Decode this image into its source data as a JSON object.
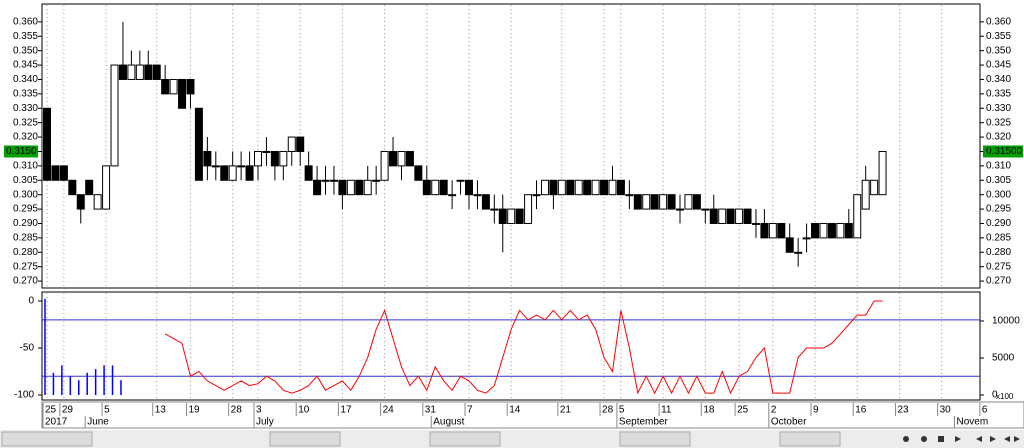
{
  "chart_data": [
    {
      "type": "candlestick",
      "categories": [
        "25",
        null,
        "29",
        null,
        null,
        null,
        null,
        "5",
        null,
        null,
        null,
        null,
        null,
        "13",
        null,
        null,
        null,
        "19",
        null,
        null,
        null,
        null,
        "28",
        null,
        null,
        "3",
        null,
        null,
        null,
        null,
        "10",
        null,
        null,
        null,
        null,
        "17",
        null,
        null,
        null,
        null,
        "24",
        null,
        null,
        null,
        null,
        "31",
        null,
        null,
        null,
        null,
        "7",
        null,
        null,
        null,
        null,
        "14",
        null,
        null,
        null,
        null,
        null,
        "21",
        null,
        null,
        null,
        null,
        "28",
        null,
        "5",
        null,
        null,
        null,
        null,
        "11",
        null,
        null,
        null,
        null,
        "18",
        null,
        null,
        null,
        "25",
        null,
        null,
        null,
        "2",
        null,
        null,
        null,
        null,
        "9",
        null,
        null,
        null,
        null,
        "16",
        null,
        null,
        null,
        null,
        "23",
        null,
        null,
        null,
        null,
        "30",
        null,
        null,
        null,
        null,
        "6"
      ],
      "months": [
        "2017",
        null,
        null,
        null,
        null,
        "June",
        null,
        null,
        null,
        null,
        null,
        null,
        null,
        null,
        null,
        null,
        null,
        null,
        null,
        null,
        null,
        null,
        null,
        null,
        null,
        "July",
        null,
        null,
        null,
        null,
        null,
        null,
        null,
        null,
        null,
        null,
        null,
        null,
        null,
        null,
        null,
        null,
        null,
        null,
        null,
        null,
        "August",
        null,
        null,
        null,
        null,
        null,
        null,
        null,
        null,
        null,
        null,
        null,
        null,
        null,
        null,
        null,
        null,
        null,
        null,
        null,
        null,
        null,
        "September",
        null,
        null,
        null,
        null,
        null,
        null,
        null,
        null,
        null,
        null,
        null,
        null,
        null,
        null,
        null,
        null,
        null,
        "October",
        null,
        null,
        null,
        null,
        null,
        null,
        null,
        null,
        null,
        null,
        null,
        null,
        null,
        null,
        null,
        null,
        null,
        null,
        null,
        null,
        null,
        "Novem",
        null,
        null,
        null
      ],
      "candles": [
        [
          0.33,
          0.33,
          0.305,
          0.305
        ],
        [
          0.31,
          0.31,
          0.305,
          0.305
        ],
        [
          0.31,
          0.31,
          0.305,
          0.305
        ],
        [
          0.305,
          0.305,
          0.3,
          0.3
        ],
        [
          0.3,
          0.3,
          0.29,
          0.295
        ],
        [
          0.305,
          0.305,
          0.3,
          0.3
        ],
        [
          0.295,
          0.3,
          0.295,
          0.3
        ],
        [
          0.295,
          0.31,
          0.295,
          0.31
        ],
        [
          0.31,
          0.345,
          0.31,
          0.345
        ],
        [
          0.345,
          0.36,
          0.34,
          0.34
        ],
        [
          0.34,
          0.35,
          0.34,
          0.345
        ],
        [
          0.34,
          0.35,
          0.34,
          0.345
        ],
        [
          0.345,
          0.35,
          0.34,
          0.34
        ],
        [
          0.345,
          0.345,
          0.34,
          0.34
        ],
        [
          0.34,
          0.345,
          0.335,
          0.335
        ],
        [
          0.335,
          0.34,
          0.335,
          0.34
        ],
        [
          0.34,
          0.34,
          0.33,
          0.33
        ],
        [
          0.34,
          0.34,
          0.33,
          0.335
        ],
        [
          0.33,
          0.33,
          0.305,
          0.305
        ],
        [
          0.315,
          0.32,
          0.305,
          0.31
        ],
        [
          0.31,
          0.315,
          0.305,
          0.31
        ],
        [
          0.31,
          0.31,
          0.305,
          0.305
        ],
        [
          0.305,
          0.315,
          0.305,
          0.31
        ],
        [
          0.31,
          0.315,
          0.305,
          0.31
        ],
        [
          0.31,
          0.315,
          0.305,
          0.305
        ],
        [
          0.31,
          0.315,
          0.305,
          0.315
        ],
        [
          0.315,
          0.32,
          0.31,
          0.315
        ],
        [
          0.315,
          0.315,
          0.305,
          0.31
        ],
        [
          0.31,
          0.315,
          0.305,
          0.315
        ],
        [
          0.315,
          0.32,
          0.31,
          0.32
        ],
        [
          0.32,
          0.32,
          0.31,
          0.315
        ],
        [
          0.31,
          0.315,
          0.305,
          0.305
        ],
        [
          0.305,
          0.31,
          0.3,
          0.3
        ],
        [
          0.305,
          0.31,
          0.3,
          0.305
        ],
        [
          0.305,
          0.31,
          0.3,
          0.305
        ],
        [
          0.305,
          0.305,
          0.295,
          0.3
        ],
        [
          0.3,
          0.305,
          0.3,
          0.305
        ],
        [
          0.305,
          0.305,
          0.3,
          0.3
        ],
        [
          0.3,
          0.31,
          0.3,
          0.305
        ],
        [
          0.305,
          0.31,
          0.3,
          0.305
        ],
        [
          0.305,
          0.315,
          0.305,
          0.315
        ],
        [
          0.315,
          0.32,
          0.31,
          0.31
        ],
        [
          0.31,
          0.315,
          0.305,
          0.315
        ],
        [
          0.315,
          0.315,
          0.31,
          0.31
        ],
        [
          0.31,
          0.31,
          0.305,
          0.305
        ],
        [
          0.305,
          0.31,
          0.3,
          0.3
        ],
        [
          0.3,
          0.305,
          0.3,
          0.305
        ],
        [
          0.305,
          0.305,
          0.3,
          0.3
        ],
        [
          0.3,
          0.305,
          0.295,
          0.3
        ],
        [
          0.305,
          0.305,
          0.3,
          0.305
        ],
        [
          0.305,
          0.305,
          0.295,
          0.3
        ],
        [
          0.3,
          0.305,
          0.295,
          0.3
        ],
        [
          0.3,
          0.3,
          0.295,
          0.295
        ],
        [
          0.295,
          0.3,
          0.29,
          0.295
        ],
        [
          0.295,
          0.3,
          0.28,
          0.29
        ],
        [
          0.29,
          0.295,
          0.29,
          0.295
        ],
        [
          0.295,
          0.295,
          0.29,
          0.29
        ],
        [
          0.29,
          0.3,
          0.29,
          0.3
        ],
        [
          0.3,
          0.305,
          0.295,
          0.3
        ],
        [
          0.3,
          0.305,
          0.3,
          0.305
        ],
        [
          0.305,
          0.305,
          0.295,
          0.3
        ],
        [
          0.3,
          0.305,
          0.3,
          0.305
        ],
        [
          0.305,
          0.305,
          0.3,
          0.3
        ],
        [
          0.3,
          0.305,
          0.3,
          0.305
        ],
        [
          0.305,
          0.305,
          0.3,
          0.3
        ],
        [
          0.3,
          0.305,
          0.3,
          0.305
        ],
        [
          0.305,
          0.305,
          0.3,
          0.3
        ],
        [
          0.3,
          0.31,
          0.3,
          0.305
        ],
        [
          0.305,
          0.305,
          0.3,
          0.3
        ],
        [
          0.3,
          0.305,
          0.295,
          0.3
        ],
        [
          0.3,
          0.3,
          0.295,
          0.295
        ],
        [
          0.295,
          0.3,
          0.295,
          0.3
        ],
        [
          0.3,
          0.3,
          0.295,
          0.295
        ],
        [
          0.295,
          0.3,
          0.295,
          0.3
        ],
        [
          0.3,
          0.3,
          0.295,
          0.295
        ],
        [
          0.295,
          0.3,
          0.29,
          0.295
        ],
        [
          0.295,
          0.3,
          0.295,
          0.3
        ],
        [
          0.3,
          0.3,
          0.295,
          0.295
        ],
        [
          0.295,
          0.295,
          0.29,
          0.295
        ],
        [
          0.295,
          0.3,
          0.29,
          0.29
        ],
        [
          0.29,
          0.295,
          0.29,
          0.295
        ],
        [
          0.295,
          0.295,
          0.29,
          0.29
        ],
        [
          0.29,
          0.295,
          0.29,
          0.295
        ],
        [
          0.295,
          0.295,
          0.29,
          0.29
        ],
        [
          0.29,
          0.295,
          0.285,
          0.29
        ],
        [
          0.29,
          0.295,
          0.285,
          0.285
        ],
        [
          0.285,
          0.29,
          0.285,
          0.29
        ],
        [
          0.29,
          0.29,
          0.285,
          0.285
        ],
        [
          0.285,
          0.29,
          0.28,
          0.28
        ],
        [
          0.28,
          0.285,
          0.275,
          0.28
        ],
        [
          0.285,
          0.29,
          0.28,
          0.285
        ],
        [
          0.29,
          0.29,
          0.285,
          0.285
        ],
        [
          0.285,
          0.29,
          0.285,
          0.29
        ],
        [
          0.29,
          0.29,
          0.285,
          0.285
        ],
        [
          0.285,
          0.29,
          0.285,
          0.29
        ],
        [
          0.29,
          0.295,
          0.285,
          0.285
        ],
        [
          0.285,
          0.3,
          0.285,
          0.3
        ],
        [
          0.295,
          0.31,
          0.295,
          0.305
        ],
        [
          0.3,
          0.305,
          0.3,
          0.305
        ],
        [
          0.3,
          0.315,
          0.3,
          0.315
        ],
        null,
        null,
        null,
        null,
        null,
        null,
        null,
        null,
        null,
        null,
        null,
        null
      ],
      "ylim": [
        0.2676,
        0.3662
      ],
      "yticks": [
        {
          "value": 0.27,
          "label": "0.270"
        },
        {
          "value": 0.275,
          "label": "0.275"
        },
        {
          "value": 0.28,
          "label": "0.280"
        },
        {
          "value": 0.285,
          "label": "0.285"
        },
        {
          "value": 0.29,
          "label": "0.290"
        },
        {
          "value": 0.295,
          "label": "0.295"
        },
        {
          "value": 0.3,
          "label": "0.300"
        },
        {
          "value": 0.305,
          "label": "0.305"
        },
        {
          "value": 0.31,
          "label": "0.310"
        },
        {
          "value": 0.315,
          "label": "0.315"
        },
        {
          "value": 0.32,
          "label": "0.320"
        },
        {
          "value": 0.325,
          "label": "0.325"
        },
        {
          "value": 0.33,
          "label": "0.330"
        },
        {
          "value": 0.335,
          "label": "0.335"
        },
        {
          "value": 0.34,
          "label": "0.340"
        },
        {
          "value": 0.345,
          "label": "0.345"
        },
        {
          "value": 0.35,
          "label": "0.350"
        },
        {
          "value": 0.355,
          "label": "0.355"
        },
        {
          "value": 0.36,
          "label": "0.360"
        }
      ],
      "last_price": {
        "value": 0.315,
        "label": "0.31500",
        "left_label": "0.3150"
      },
      "grid": true
    },
    {
      "type": "line",
      "series": [
        {
          "color": "#ff0000",
          "values": [
            null,
            null,
            null,
            null,
            null,
            null,
            null,
            null,
            null,
            null,
            null,
            null,
            null,
            null,
            -35,
            -40,
            -45,
            -80,
            -75,
            -85,
            -90,
            -95,
            -90,
            -85,
            -90,
            -88,
            -80,
            -85,
            -95,
            -98,
            -95,
            -90,
            -80,
            -95,
            -90,
            -85,
            -95,
            -80,
            -60,
            -30,
            -10,
            -40,
            -70,
            -90,
            -80,
            -95,
            -70,
            -85,
            -95,
            -80,
            -85,
            -95,
            -98,
            -90,
            -60,
            -30,
            -10,
            -20,
            -15,
            -20,
            -10,
            -20,
            -10,
            -20,
            -15,
            -30,
            -60,
            -75,
            -10,
            -50,
            -98,
            -80,
            -98,
            -80,
            -98,
            -80,
            -98,
            -80,
            -98,
            -98,
            -75,
            -98,
            -80,
            -75,
            -60,
            -50,
            -98,
            -98,
            -98,
            -60,
            -50,
            -50,
            -50,
            -45,
            -35,
            -25,
            -15,
            -15,
            0,
            0,
            null,
            null,
            null,
            null,
            null,
            null,
            null,
            null,
            null,
            null,
            null,
            null
          ]
        },
        {
          "color": "#0000ff",
          "axis": "y2",
          "bars": true,
          "values": [
            13000,
            3000,
            4000,
            2500,
            2000,
            3000,
            3500,
            4000,
            4000,
            2000,
            null,
            null,
            null,
            null,
            null,
            null,
            null,
            null,
            null,
            null,
            null,
            null,
            null,
            null,
            null,
            null,
            null,
            null,
            null,
            null,
            null,
            null,
            null,
            null,
            null,
            null,
            null,
            null,
            null,
            null,
            null,
            null,
            null,
            null,
            null,
            null,
            null,
            null,
            null,
            null,
            null,
            null,
            null,
            null,
            null,
            null,
            null,
            null,
            null,
            null,
            null,
            null,
            null,
            null,
            null,
            null,
            null,
            null,
            null,
            null,
            null,
            null,
            null,
            null,
            null,
            null,
            null,
            null,
            null,
            null,
            null,
            null,
            null,
            null,
            null,
            null,
            null,
            null,
            null,
            null,
            null,
            null,
            null,
            null,
            null,
            null,
            null,
            null,
            null,
            null,
            null,
            null,
            null,
            null,
            null,
            null,
            null,
            null,
            null,
            null,
            null,
            null
          ]
        }
      ],
      "reference_lines": [
        -20,
        -80
      ],
      "ylim": [
        -105.3,
        9.6
      ],
      "yticks": [
        0,
        -50,
        -100
      ],
      "y2lim": [
        -676,
        13919
      ],
      "y2ticks": [
        0,
        5000,
        10000
      ],
      "y2_unit": "x100"
    }
  ]
}
